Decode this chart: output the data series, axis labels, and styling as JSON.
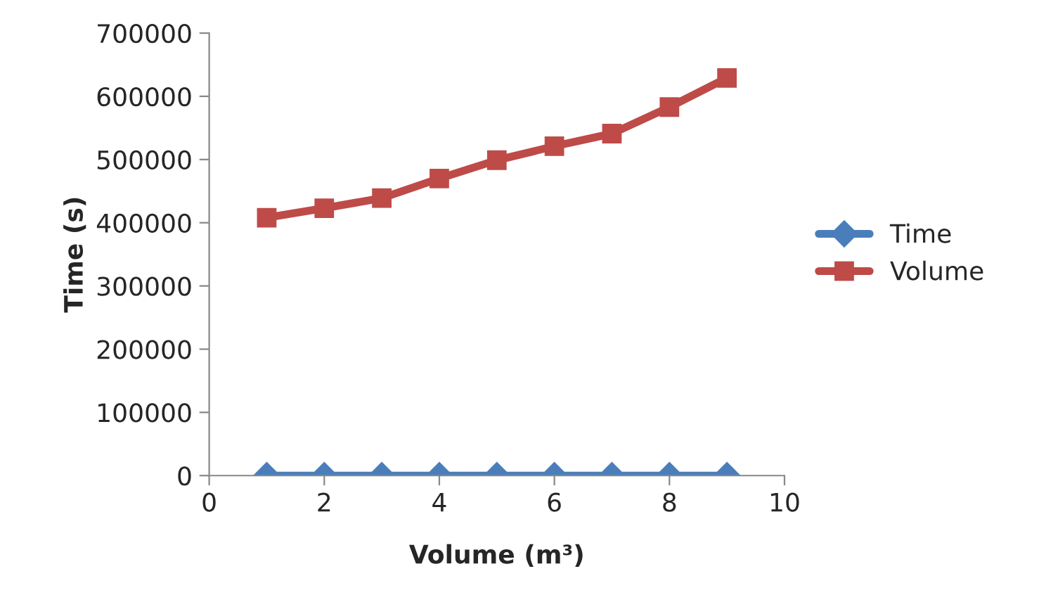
{
  "chart_data": {
    "type": "line",
    "xlabel": "Volume (m³)",
    "ylabel": "Time (s)",
    "x": [
      1,
      2,
      3,
      4,
      5,
      6,
      7,
      8,
      9
    ],
    "series": [
      {
        "name": "Time",
        "color": "#4a7ebb",
        "marker": "diamond",
        "values": [
          0,
          0,
          0,
          0,
          0,
          0,
          0,
          0,
          0
        ]
      },
      {
        "name": "Volume",
        "color": "#be4b48",
        "marker": "square",
        "values": [
          408000,
          423000,
          439000,
          470000,
          499000,
          521000,
          541000,
          583000,
          629000
        ]
      }
    ],
    "xlim": [
      0,
      10
    ],
    "xticks": [
      0,
      2,
      4,
      6,
      8,
      10
    ],
    "ylim": [
      0,
      700000
    ],
    "yticks": [
      0,
      100000,
      200000,
      300000,
      400000,
      500000,
      600000,
      700000
    ],
    "grid": false,
    "legend": "right",
    "line_style": "solid"
  }
}
